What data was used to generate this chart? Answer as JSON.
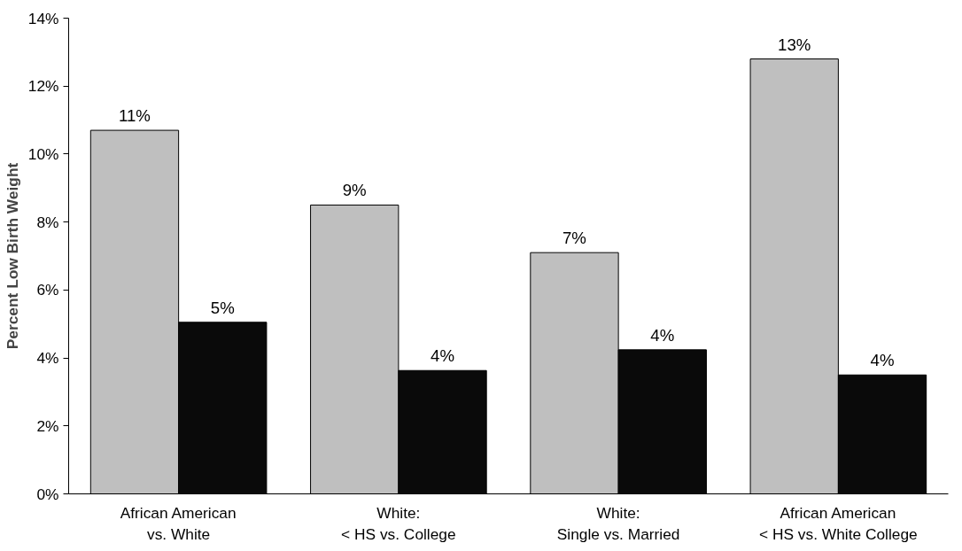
{
  "chart_data": {
    "type": "bar",
    "ylabel": "Percent Low Birth Weight",
    "categories": [
      "African American\nvs. White",
      "White:\n< HS vs. College",
      "White:\nSingle vs. Married",
      "African American\n< HS vs. White College"
    ],
    "series": [
      {
        "color": "#bfbfbf",
        "values": [
          10.7,
          8.5,
          7.1,
          12.8
        ],
        "value_labels": [
          "11%",
          "9%",
          "7%",
          "13%"
        ]
      },
      {
        "color": "#0a0a0a",
        "values": [
          5.05,
          3.63,
          4.24,
          3.5
        ],
        "value_labels": [
          "5%",
          "4%",
          "4%",
          "4%"
        ]
      }
    ],
    "ylim": [
      0,
      14
    ],
    "yticks": [
      {
        "value": 0,
        "label": "0%"
      },
      {
        "value": 2,
        "label": "2%"
      },
      {
        "value": 4,
        "label": "4%"
      },
      {
        "value": 6,
        "label": "6%"
      },
      {
        "value": 8,
        "label": "8%"
      },
      {
        "value": 10,
        "label": "10%"
      },
      {
        "value": 12,
        "label": "12%"
      },
      {
        "value": 14,
        "label": "14%"
      }
    ],
    "grid": false
  }
}
